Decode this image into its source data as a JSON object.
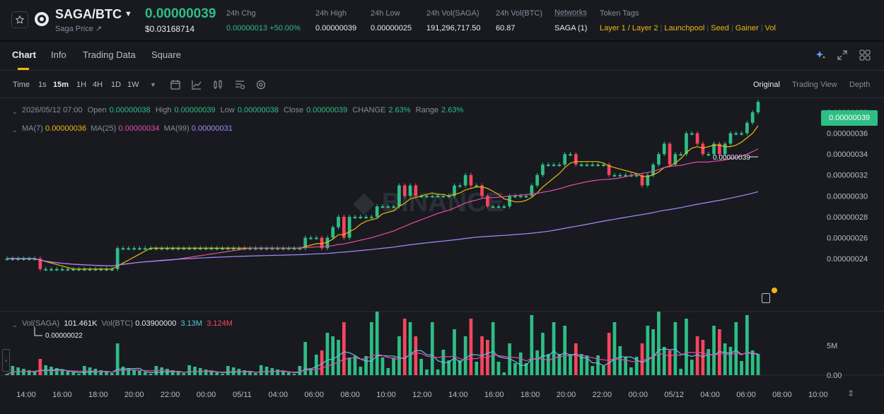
{
  "header": {
    "pair": "SAGA/BTC",
    "subtitle": "Saga Price ↗",
    "last_price": "0.00000039",
    "usd_price": "$0.03168714",
    "stats": [
      {
        "label": "24h Chg",
        "value": "0.00000013 +50.00%",
        "color": "#2ebd85"
      },
      {
        "label": "24h High",
        "value": "0.00000039"
      },
      {
        "label": "24h Low",
        "value": "0.00000025"
      },
      {
        "label": "24h Vol(SAGA)",
        "value": "191,296,717.50"
      },
      {
        "label": "24h Vol(BTC)",
        "value": "60.87"
      },
      {
        "label": "Networks",
        "value": "SAGA (1)"
      }
    ],
    "token_tags_label": "Token Tags",
    "token_tags": [
      "Layer 1 / Layer 2",
      "Launchpool",
      "Seed",
      "Gainer",
      "Vol"
    ]
  },
  "tabs": [
    "Chart",
    "Info",
    "Trading Data",
    "Square"
  ],
  "intervals": [
    "Time",
    "1s",
    "15m",
    "1H",
    "4H",
    "1D",
    "1W"
  ],
  "view_modes": [
    "Original",
    "Trading View",
    "Depth"
  ],
  "ohlc": {
    "date": "2026/05/12 07:00",
    "open_label": "Open",
    "open": "0.00000038",
    "high_label": "High",
    "high": "0.00000039",
    "low_label": "Low",
    "low": "0.00000038",
    "close_label": "Close",
    "close": "0.00000039",
    "change_label": "CHANGE",
    "change": "2.63%",
    "range_label": "Range",
    "range": "2.63%"
  },
  "ma": {
    "ma7_label": "MA(7)",
    "ma7": "0.00000036",
    "ma25_label": "MA(25)",
    "ma25": "0.00000034",
    "ma99_label": "MA(99)",
    "ma99": "0.00000031"
  },
  "volume": {
    "label1": "Vol(SAGA)",
    "v1": "101.461K",
    "label2": "Vol(BTC)",
    "v2": "0.03900000",
    "v3": "3.13M",
    "v4": "3.124M"
  },
  "colors": {
    "up": "#2ebd85",
    "down": "#f6465d",
    "ma7": "#f0b90b",
    "ma25": "#e64ca8",
    "ma99": "#a78bfa",
    "vol_ma1": "#5ac8e0",
    "vol_ma2": "#e64ca8"
  },
  "chart_data": {
    "type": "candlestick",
    "price_axis_labels": [
      "0.00000038",
      "0.00000036",
      "0.00000034",
      "0.00000032",
      "0.00000030",
      "0.00000028",
      "0.00000026",
      "0.00000024"
    ],
    "time_axis_labels": [
      "14:00",
      "16:00",
      "18:00",
      "20:00",
      "22:00",
      "00:00",
      "05/11",
      "04:00",
      "06:00",
      "08:00",
      "10:00",
      "12:00",
      "14:00",
      "16:00",
      "18:00",
      "20:00",
      "22:00",
      "00:00",
      "05/12",
      "04:00",
      "06:00",
      "08:00",
      "10:00"
    ],
    "volume_axis_labels": [
      "5M",
      "0.00"
    ],
    "high_marker": "0.00000039",
    "low_marker": "0.00000022",
    "current_price_tag": "0.00000039",
    "candles": [
      [
        24,
        24
      ],
      [
        24,
        24
      ],
      [
        24,
        24
      ],
      [
        24,
        24
      ],
      [
        24,
        24
      ],
      [
        24,
        24
      ],
      [
        24,
        23
      ],
      [
        23,
        23
      ],
      [
        23,
        23
      ],
      [
        23,
        23
      ],
      [
        23,
        23
      ],
      [
        23,
        23
      ],
      [
        23,
        23
      ],
      [
        23,
        23
      ],
      [
        23,
        23
      ],
      [
        23,
        23
      ],
      [
        23,
        23
      ],
      [
        23,
        23
      ],
      [
        23,
        23
      ],
      [
        23,
        23
      ],
      [
        23,
        25
      ],
      [
        25,
        25
      ],
      [
        25,
        25
      ],
      [
        25,
        25
      ],
      [
        25,
        25
      ],
      [
        25,
        25
      ],
      [
        25,
        25
      ],
      [
        25,
        25
      ],
      [
        25,
        25
      ],
      [
        25,
        25
      ],
      [
        25,
        25
      ],
      [
        25,
        25
      ],
      [
        25,
        25
      ],
      [
        25,
        25
      ],
      [
        25,
        25
      ],
      [
        25,
        25
      ],
      [
        25,
        25
      ],
      [
        25,
        25
      ],
      [
        25,
        25
      ],
      [
        25,
        25
      ],
      [
        25,
        25
      ],
      [
        25,
        25
      ],
      [
        25,
        25
      ],
      [
        25,
        25
      ],
      [
        25,
        25
      ],
      [
        25,
        25
      ],
      [
        25,
        25
      ],
      [
        25,
        25
      ],
      [
        25,
        25
      ],
      [
        25,
        25
      ],
      [
        25,
        25
      ],
      [
        25,
        25
      ],
      [
        25,
        25
      ],
      [
        25,
        25
      ],
      [
        25,
        26
      ],
      [
        26,
        26
      ],
      [
        26,
        26
      ],
      [
        26,
        25
      ],
      [
        25,
        26
      ],
      [
        26,
        27
      ],
      [
        27,
        28
      ],
      [
        28,
        26
      ],
      [
        26,
        28
      ],
      [
        28,
        28
      ],
      [
        28,
        28
      ],
      [
        28,
        28
      ],
      [
        28,
        28
      ],
      [
        28,
        29
      ],
      [
        29,
        29
      ],
      [
        29,
        29
      ],
      [
        29,
        29
      ],
      [
        29,
        31
      ],
      [
        31,
        30
      ],
      [
        30,
        31
      ],
      [
        31,
        30
      ],
      [
        30,
        30
      ],
      [
        30,
        30
      ],
      [
        30,
        30
      ],
      [
        30,
        30
      ],
      [
        30,
        30
      ],
      [
        30,
        30
      ],
      [
        30,
        31
      ],
      [
        31,
        31
      ],
      [
        31,
        32
      ],
      [
        32,
        31
      ],
      [
        31,
        31
      ],
      [
        31,
        30
      ],
      [
        30,
        29
      ],
      [
        29,
        29
      ],
      [
        29,
        29
      ],
      [
        29,
        29
      ],
      [
        29,
        30
      ],
      [
        30,
        30
      ],
      [
        30,
        30
      ],
      [
        30,
        30
      ],
      [
        30,
        31
      ],
      [
        31,
        32
      ],
      [
        32,
        33
      ],
      [
        33,
        33
      ],
      [
        33,
        33
      ],
      [
        33,
        33
      ],
      [
        33,
        34
      ],
      [
        34,
        34
      ],
      [
        34,
        33
      ],
      [
        33,
        33
      ],
      [
        33,
        33
      ],
      [
        33,
        33
      ],
      [
        33,
        33
      ],
      [
        33,
        33
      ],
      [
        33,
        32
      ],
      [
        32,
        32
      ],
      [
        32,
        32
      ],
      [
        32,
        32
      ],
      [
        32,
        32
      ],
      [
        32,
        32
      ],
      [
        32,
        31
      ],
      [
        31,
        32
      ],
      [
        32,
        33
      ],
      [
        33,
        34
      ],
      [
        34,
        35
      ],
      [
        35,
        33
      ],
      [
        33,
        34
      ],
      [
        34,
        34
      ],
      [
        34,
        36
      ],
      [
        36,
        36
      ],
      [
        36,
        35
      ],
      [
        35,
        34
      ],
      [
        34,
        34
      ],
      [
        34,
        35
      ],
      [
        35,
        34
      ],
      [
        34,
        35
      ],
      [
        35,
        36
      ],
      [
        36,
        36
      ],
      [
        36,
        36
      ],
      [
        36,
        37
      ],
      [
        37,
        38
      ],
      [
        38,
        39
      ]
    ]
  }
}
